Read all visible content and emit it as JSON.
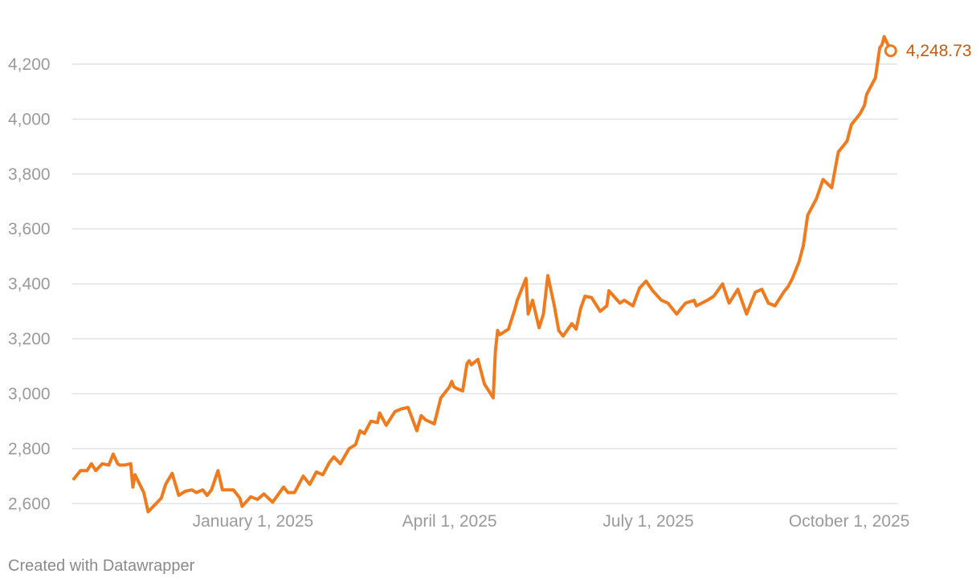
{
  "footer": {
    "credit": "Created with Datawrapper"
  },
  "colors": {
    "line": "#f07a1e",
    "end_label": "#c85a0a",
    "grid": "#e2e2e2",
    "tick_text": "#9a9a9a"
  },
  "chart_data": {
    "type": "line",
    "title": "",
    "xlabel": "",
    "ylabel": "",
    "x_type": "date",
    "xlim": [
      "2024-10-11",
      "2025-10-23"
    ],
    "ylim": [
      2560,
      4340
    ],
    "y_ticks": [
      2600,
      2800,
      3000,
      3200,
      3400,
      3600,
      3800,
      4000,
      4200
    ],
    "y_tick_labels": [
      "2,600",
      "2,800",
      "3,000",
      "3,200",
      "3,400",
      "3,600",
      "3,800",
      "4,000",
      "4,200"
    ],
    "x_ticks": [
      "2025-01-01",
      "2025-04-01",
      "2025-07-01",
      "2025-10-01"
    ],
    "x_tick_labels": [
      "January 1, 2025",
      "April 1, 2025",
      "July 1, 2025",
      "October 1, 2025"
    ],
    "grid": true,
    "legend": "none",
    "end_value": 4248.73,
    "end_label": "4,248.73",
    "end_date": "2025-10-20",
    "series": [
      {
        "x": [
          "2024-10-11",
          "2024-10-14",
          "2024-10-17",
          "2024-10-19",
          "2024-10-21",
          "2024-10-24",
          "2024-10-27",
          "2024-10-29",
          "2024-10-31",
          "2024-11-01",
          "2024-11-03",
          "2024-11-06",
          "2024-11-07",
          "2024-11-08",
          "2024-11-12",
          "2024-11-14",
          "2024-11-20",
          "2024-11-22",
          "2024-11-25",
          "2024-11-28",
          "2024-12-01",
          "2024-12-04",
          "2024-12-06",
          "2024-12-09",
          "2024-12-11",
          "2024-12-13",
          "2024-12-16",
          "2024-12-18",
          "2024-12-20",
          "2024-12-23",
          "2024-12-26",
          "2024-12-27",
          "2024-12-31",
          "2025-01-03",
          "2025-01-06",
          "2025-01-10",
          "2025-01-15",
          "2025-01-17",
          "2025-01-20",
          "2025-01-24",
          "2025-01-27",
          "2025-01-30",
          "2025-02-02",
          "2025-02-05",
          "2025-02-07",
          "2025-02-10",
          "2025-02-14",
          "2025-02-17",
          "2025-02-19",
          "2025-02-21",
          "2025-02-24",
          "2025-02-27",
          "2025-02-28",
          "2025-03-03",
          "2025-03-07",
          "2025-03-10",
          "2025-03-13",
          "2025-03-17",
          "2025-03-19",
          "2025-03-21",
          "2025-03-25",
          "2025-03-28",
          "2025-04-01",
          "2025-04-02",
          "2025-04-03",
          "2025-04-04",
          "2025-04-07",
          "2025-04-09",
          "2025-04-10",
          "2025-04-11",
          "2025-04-14",
          "2025-04-17",
          "2025-04-21",
          "2025-04-22",
          "2025-04-23",
          "2025-04-24",
          "2025-04-28",
          "2025-05-01",
          "2025-05-02",
          "2025-05-06",
          "2025-05-07",
          "2025-05-09",
          "2025-05-12",
          "2025-05-14",
          "2025-05-16",
          "2025-05-19",
          "2025-05-21",
          "2025-05-23",
          "2025-05-27",
          "2025-05-29",
          "2025-05-31",
          "2025-06-02",
          "2025-06-05",
          "2025-06-09",
          "2025-06-12",
          "2025-06-13",
          "2025-06-18",
          "2025-06-20",
          "2025-06-24",
          "2025-06-27",
          "2025-06-30",
          "2025-07-03",
          "2025-07-07",
          "2025-07-10",
          "2025-07-14",
          "2025-07-18",
          "2025-07-22",
          "2025-07-23",
          "2025-07-28",
          "2025-07-31",
          "2025-08-04",
          "2025-08-07",
          "2025-08-11",
          "2025-08-15",
          "2025-08-19",
          "2025-08-22",
          "2025-08-25",
          "2025-08-28",
          "2025-09-01",
          "2025-09-03",
          "2025-09-05",
          "2025-09-08",
          "2025-09-10",
          "2025-09-12",
          "2025-09-16",
          "2025-09-19",
          "2025-09-23",
          "2025-09-26",
          "2025-09-30",
          "2025-10-02",
          "2025-10-06",
          "2025-10-08",
          "2025-10-09",
          "2025-10-13",
          "2025-10-15",
          "2025-10-16",
          "2025-10-17",
          "2025-10-20"
        ],
        "values": [
          2690,
          2720,
          2720,
          2745,
          2720,
          2745,
          2740,
          2780,
          2745,
          2740,
          2740,
          2745,
          2660,
          2705,
          2640,
          2570,
          2620,
          2670,
          2710,
          2630,
          2645,
          2650,
          2640,
          2650,
          2630,
          2650,
          2720,
          2650,
          2650,
          2650,
          2620,
          2590,
          2625,
          2615,
          2635,
          2605,
          2660,
          2640,
          2640,
          2700,
          2670,
          2715,
          2705,
          2750,
          2770,
          2745,
          2800,
          2815,
          2865,
          2855,
          2900,
          2895,
          2930,
          2885,
          2935,
          2945,
          2950,
          2865,
          2920,
          2905,
          2890,
          2985,
          3025,
          3045,
          3025,
          3020,
          3010,
          3110,
          3120,
          3105,
          3125,
          3035,
          2985,
          3155,
          3230,
          3215,
          3235,
          3310,
          3340,
          3420,
          3290,
          3340,
          3240,
          3290,
          3430,
          3320,
          3230,
          3210,
          3255,
          3235,
          3310,
          3355,
          3350,
          3300,
          3320,
          3375,
          3330,
          3340,
          3320,
          3385,
          3410,
          3375,
          3340,
          3330,
          3290,
          3330,
          3340,
          3320,
          3340,
          3355,
          3400,
          3330,
          3380,
          3290,
          3370,
          3380,
          3330,
          3320,
          3370,
          3390,
          3420,
          3480,
          3540,
          3650,
          3710,
          3780,
          3750,
          3880,
          3920,
          3980,
          4020,
          4050,
          4090,
          4150,
          4260,
          4270,
          4300,
          4248.73
        ]
      }
    ]
  }
}
